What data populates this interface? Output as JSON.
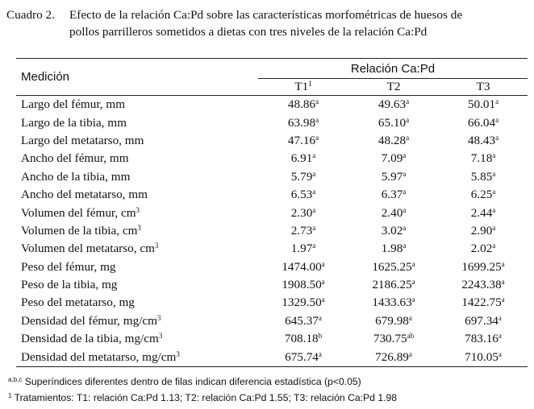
{
  "caption": {
    "label": "Cuadro 2.",
    "line1": "Efecto de la relación Ca:Pd sobre las características morfométricas de huesos de",
    "line2": "pollos parrilleros sometidos a dietas con tres niveles de la relación Ca:Pd"
  },
  "table": {
    "col_medicion": "Medición",
    "col_group": "Relación Ca:Pd",
    "treatments": [
      {
        "name": "T1",
        "sup": "1"
      },
      {
        "name": "T2",
        "sup": ""
      },
      {
        "name": "T3",
        "sup": ""
      }
    ],
    "rows": [
      {
        "label": "Largo del fémur, mm",
        "label_sup": "",
        "cells": [
          {
            "v": "48.86",
            "s": "a"
          },
          {
            "v": "49.63",
            "s": "a"
          },
          {
            "v": "50.01",
            "s": "a"
          }
        ]
      },
      {
        "label": "Largo de la tibia, mm",
        "label_sup": "",
        "cells": [
          {
            "v": "63.98",
            "s": "a"
          },
          {
            "v": "65.10",
            "s": "a"
          },
          {
            "v": "66.04",
            "s": "a"
          }
        ]
      },
      {
        "label": "Largo del metatarso, mm",
        "label_sup": "",
        "cells": [
          {
            "v": "47.16",
            "s": "a"
          },
          {
            "v": "48.28",
            "s": "a"
          },
          {
            "v": "48.43",
            "s": "a"
          }
        ]
      },
      {
        "label": "Ancho del fémur, mm",
        "label_sup": "",
        "cells": [
          {
            "v": "6.91",
            "s": "a"
          },
          {
            "v": "7.09",
            "s": "a"
          },
          {
            "v": "7.18",
            "s": "a"
          }
        ]
      },
      {
        "label": "Ancho de la tibia, mm",
        "label_sup": "",
        "cells": [
          {
            "v": "5.79",
            "s": "a"
          },
          {
            "v": "5.97",
            "s": "a"
          },
          {
            "v": "5.85",
            "s": "a"
          }
        ]
      },
      {
        "label": "Ancho del metatarso, mm",
        "label_sup": "",
        "cells": [
          {
            "v": "6.53",
            "s": "a"
          },
          {
            "v": "6.37",
            "s": "a"
          },
          {
            "v": "6.25",
            "s": "a"
          }
        ]
      },
      {
        "label": "Volumen del fémur, cm",
        "label_sup": "3",
        "cells": [
          {
            "v": "2.30",
            "s": "a"
          },
          {
            "v": "2.40",
            "s": "a"
          },
          {
            "v": "2.44",
            "s": "a"
          }
        ]
      },
      {
        "label": "Volumen de la tibia, cm",
        "label_sup": "3",
        "cells": [
          {
            "v": "2.73",
            "s": "a"
          },
          {
            "v": "3.02",
            "s": "a"
          },
          {
            "v": "2.90",
            "s": "a"
          }
        ]
      },
      {
        "label": "Volumen del metatarso, cm",
        "label_sup": "3",
        "cells": [
          {
            "v": "1.97",
            "s": "a"
          },
          {
            "v": "1.98",
            "s": "a"
          },
          {
            "v": "2.02",
            "s": "a"
          }
        ]
      },
      {
        "label": "Peso del fémur, mg",
        "label_sup": "",
        "cells": [
          {
            "v": "1474.00",
            "s": "a"
          },
          {
            "v": "1625.25",
            "s": "a"
          },
          {
            "v": "1699.25",
            "s": "a"
          }
        ]
      },
      {
        "label": "Peso de la tibia, mg",
        "label_sup": "",
        "cells": [
          {
            "v": "1908.50",
            "s": "a"
          },
          {
            "v": "2186.25",
            "s": "a"
          },
          {
            "v": "2243.38",
            "s": "a"
          }
        ]
      },
      {
        "label": "Peso del metatarso, mg",
        "label_sup": "",
        "cells": [
          {
            "v": "1329.50",
            "s": "a"
          },
          {
            "v": "1433.63",
            "s": "a"
          },
          {
            "v": "1422.75",
            "s": "a"
          }
        ]
      },
      {
        "label": "Densidad del fémur, mg/cm",
        "label_sup": "3",
        "cells": [
          {
            "v": "645.37",
            "s": "a"
          },
          {
            "v": "679.98",
            "s": "a"
          },
          {
            "v": "697.34",
            "s": "a"
          }
        ]
      },
      {
        "label": "Densidad de la tibia, mg/cm",
        "label_sup": "3",
        "cells": [
          {
            "v": "708.18",
            "s": "b"
          },
          {
            "v": "730.75",
            "s": "ab"
          },
          {
            "v": "783.16",
            "s": "a"
          }
        ]
      },
      {
        "label": "Densidad del metatarso, mg/cm",
        "label_sup": "3",
        "cells": [
          {
            "v": "675.74",
            "s": "a"
          },
          {
            "v": "726.89",
            "s": "a"
          },
          {
            "v": "710.05",
            "s": "a"
          }
        ]
      }
    ]
  },
  "notes": {
    "note1_sup": "a,b,c",
    "note1_text": " Superíndices diferentes dentro de filas indican diferencia estadística (p<0.05)",
    "note2_sup": "1",
    "note2_text": " Tratamientos: T1: relación Ca:Pd 1.13; T2: relación Ca:Pd 1.55; T3: relación Ca:Pd 1.98"
  }
}
